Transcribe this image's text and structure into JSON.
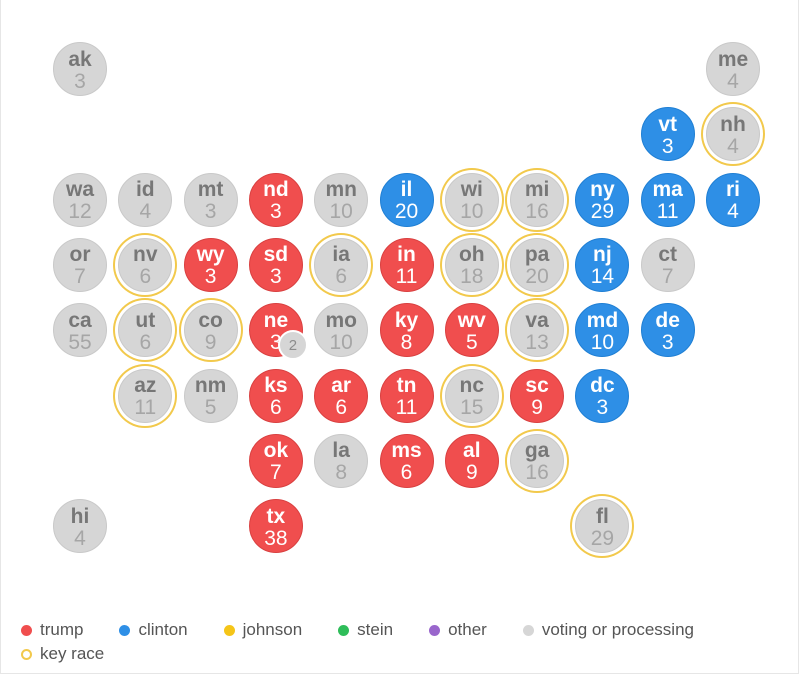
{
  "colors": {
    "trump": "#f04e4e",
    "clinton": "#2e8fe6",
    "johnson": "#f5c518",
    "stein": "#2ebd59",
    "other": "#9966cc",
    "voting": "#d6d6d6",
    "key_race": "#f2c94c"
  },
  "states": [
    {
      "abbr": "ak",
      "votes": "3",
      "status": "gray",
      "key": false,
      "row": 0,
      "col": 0
    },
    {
      "abbr": "me",
      "votes": "4",
      "status": "gray",
      "key": false,
      "row": 0,
      "col": 10
    },
    {
      "abbr": "vt",
      "votes": "3",
      "status": "blue",
      "key": false,
      "row": 1,
      "col": 9
    },
    {
      "abbr": "nh",
      "votes": "4",
      "status": "gray",
      "key": true,
      "row": 1,
      "col": 10
    },
    {
      "abbr": "wa",
      "votes": "12",
      "status": "gray",
      "key": false,
      "row": 2,
      "col": 0
    },
    {
      "abbr": "id",
      "votes": "4",
      "status": "gray",
      "key": false,
      "row": 2,
      "col": 1
    },
    {
      "abbr": "mt",
      "votes": "3",
      "status": "gray",
      "key": false,
      "row": 2,
      "col": 2
    },
    {
      "abbr": "nd",
      "votes": "3",
      "status": "red",
      "key": false,
      "row": 2,
      "col": 3
    },
    {
      "abbr": "mn",
      "votes": "10",
      "status": "gray",
      "key": false,
      "row": 2,
      "col": 4
    },
    {
      "abbr": "il",
      "votes": "20",
      "status": "blue",
      "key": false,
      "row": 2,
      "col": 5
    },
    {
      "abbr": "wi",
      "votes": "10",
      "status": "gray",
      "key": true,
      "row": 2,
      "col": 6
    },
    {
      "abbr": "mi",
      "votes": "16",
      "status": "gray",
      "key": true,
      "row": 2,
      "col": 7
    },
    {
      "abbr": "ny",
      "votes": "29",
      "status": "blue",
      "key": false,
      "row": 2,
      "col": 8
    },
    {
      "abbr": "ma",
      "votes": "11",
      "status": "blue",
      "key": false,
      "row": 2,
      "col": 9
    },
    {
      "abbr": "ri",
      "votes": "4",
      "status": "blue",
      "key": false,
      "row": 2,
      "col": 10
    },
    {
      "abbr": "or",
      "votes": "7",
      "status": "gray",
      "key": false,
      "row": 3,
      "col": 0
    },
    {
      "abbr": "nv",
      "votes": "6",
      "status": "gray",
      "key": true,
      "row": 3,
      "col": 1
    },
    {
      "abbr": "wy",
      "votes": "3",
      "status": "red",
      "key": false,
      "row": 3,
      "col": 2
    },
    {
      "abbr": "sd",
      "votes": "3",
      "status": "red",
      "key": false,
      "row": 3,
      "col": 3
    },
    {
      "abbr": "ia",
      "votes": "6",
      "status": "gray",
      "key": true,
      "row": 3,
      "col": 4
    },
    {
      "abbr": "in",
      "votes": "11",
      "status": "red",
      "key": false,
      "row": 3,
      "col": 5
    },
    {
      "abbr": "oh",
      "votes": "18",
      "status": "gray",
      "key": true,
      "row": 3,
      "col": 6
    },
    {
      "abbr": "pa",
      "votes": "20",
      "status": "gray",
      "key": true,
      "row": 3,
      "col": 7
    },
    {
      "abbr": "nj",
      "votes": "14",
      "status": "blue",
      "key": false,
      "row": 3,
      "col": 8
    },
    {
      "abbr": "ct",
      "votes": "7",
      "status": "gray",
      "key": false,
      "row": 3,
      "col": 9
    },
    {
      "abbr": "ca",
      "votes": "55",
      "status": "gray",
      "key": false,
      "row": 4,
      "col": 0
    },
    {
      "abbr": "ut",
      "votes": "6",
      "status": "gray",
      "key": true,
      "row": 4,
      "col": 1
    },
    {
      "abbr": "co",
      "votes": "9",
      "status": "gray",
      "key": true,
      "row": 4,
      "col": 2
    },
    {
      "abbr": "ne",
      "votes": "3",
      "status": "red",
      "key": false,
      "row": 4,
      "col": 3,
      "split": "2"
    },
    {
      "abbr": "mo",
      "votes": "10",
      "status": "gray",
      "key": false,
      "row": 4,
      "col": 4
    },
    {
      "abbr": "ky",
      "votes": "8",
      "status": "red",
      "key": false,
      "row": 4,
      "col": 5
    },
    {
      "abbr": "wv",
      "votes": "5",
      "status": "red",
      "key": false,
      "row": 4,
      "col": 6
    },
    {
      "abbr": "va",
      "votes": "13",
      "status": "gray",
      "key": true,
      "row": 4,
      "col": 7
    },
    {
      "abbr": "md",
      "votes": "10",
      "status": "blue",
      "key": false,
      "row": 4,
      "col": 8
    },
    {
      "abbr": "de",
      "votes": "3",
      "status": "blue",
      "key": false,
      "row": 4,
      "col": 9
    },
    {
      "abbr": "az",
      "votes": "11",
      "status": "gray",
      "key": true,
      "row": 5,
      "col": 1
    },
    {
      "abbr": "nm",
      "votes": "5",
      "status": "gray",
      "key": false,
      "row": 5,
      "col": 2
    },
    {
      "abbr": "ks",
      "votes": "6",
      "status": "red",
      "key": false,
      "row": 5,
      "col": 3
    },
    {
      "abbr": "ar",
      "votes": "6",
      "status": "red",
      "key": false,
      "row": 5,
      "col": 4
    },
    {
      "abbr": "tn",
      "votes": "11",
      "status": "red",
      "key": false,
      "row": 5,
      "col": 5
    },
    {
      "abbr": "nc",
      "votes": "15",
      "status": "gray",
      "key": true,
      "row": 5,
      "col": 6
    },
    {
      "abbr": "sc",
      "votes": "9",
      "status": "red",
      "key": false,
      "row": 5,
      "col": 7
    },
    {
      "abbr": "dc",
      "votes": "3",
      "status": "blue",
      "key": false,
      "row": 5,
      "col": 8
    },
    {
      "abbr": "ok",
      "votes": "7",
      "status": "red",
      "key": false,
      "row": 6,
      "col": 3
    },
    {
      "abbr": "la",
      "votes": "8",
      "status": "gray",
      "key": false,
      "row": 6,
      "col": 4
    },
    {
      "abbr": "ms",
      "votes": "6",
      "status": "red",
      "key": false,
      "row": 6,
      "col": 5
    },
    {
      "abbr": "al",
      "votes": "9",
      "status": "red",
      "key": false,
      "row": 6,
      "col": 6
    },
    {
      "abbr": "ga",
      "votes": "16",
      "status": "gray",
      "key": true,
      "row": 6,
      "col": 7
    },
    {
      "abbr": "hi",
      "votes": "4",
      "status": "gray",
      "key": false,
      "row": 7,
      "col": 0
    },
    {
      "abbr": "tx",
      "votes": "38",
      "status": "red",
      "key": false,
      "row": 7,
      "col": 3
    },
    {
      "abbr": "fl",
      "votes": "29",
      "status": "gray",
      "key": true,
      "row": 7,
      "col": 8
    }
  ],
  "legend": {
    "trump": "trump",
    "clinton": "clinton",
    "johnson": "johnson",
    "stein": "stein",
    "other": "other",
    "voting": "voting or processing",
    "key_race": "key race"
  }
}
